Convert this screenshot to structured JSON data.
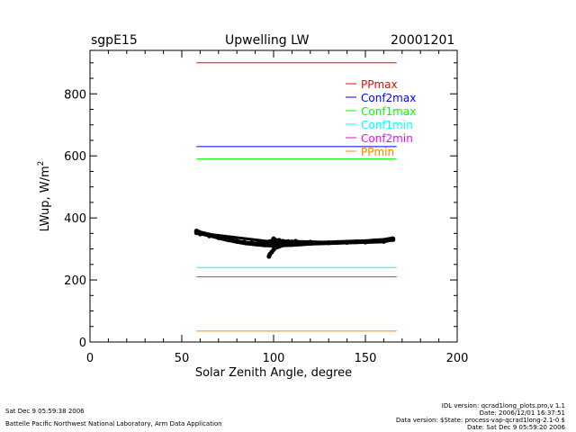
{
  "header": {
    "site": "sgpE15",
    "title": "Upwelling  LW",
    "date": "20001201"
  },
  "footer": {
    "left_line1": "Sat Dec  9 05:59:38 2006",
    "left_line2": "Battelle Pacific Northwest National Laboratory, Arm Data Application",
    "right_line1": "IDL version: qcrad1long_plots.pro,v 1.1",
    "right_line2": "Date: 2006/12/01 16:37:51",
    "right_line3": "Data version: $State: process-vap-qcrad1long-2.1-0 $",
    "right_line4": "Date: Sat Dec  9 05:59:20 2006"
  },
  "chart_data": {
    "type": "line",
    "title": "Upwelling  LW",
    "xlabel": "Solar Zenith Angle, degree",
    "ylabel": "LWup, W/m²",
    "xlim": [
      0,
      200
    ],
    "ylim": [
      0,
      940
    ],
    "x_ticks": [
      0,
      50,
      100,
      150,
      200
    ],
    "x_tick_labels": [
      "0",
      "50",
      "100",
      "150",
      "200"
    ],
    "y_ticks": [
      0,
      200,
      400,
      600,
      800
    ],
    "y_tick_labels": [
      "0",
      "200",
      "400",
      "600",
      "800"
    ],
    "x_minor_step": 10,
    "y_minor_step": 50,
    "grid": false,
    "legend_position": "top-right",
    "series": [
      {
        "name": "PPmax",
        "color": "#ff0000",
        "x": [
          58,
          167
        ],
        "y": [
          900,
          900
        ]
      },
      {
        "name": "Conf2max",
        "color": "#0000ff",
        "x": [
          58,
          167
        ],
        "y": [
          630,
          630
        ]
      },
      {
        "name": "Conf1max",
        "color": "#00ff00",
        "x": [
          58,
          167
        ],
        "y": [
          590,
          590
        ]
      },
      {
        "name": "Conf1min",
        "color": "#00ffff",
        "x": [
          58,
          167
        ],
        "y": [
          240,
          240
        ]
      },
      {
        "name": "Conf2min",
        "color": "#ff00ff",
        "x": [
          58,
          167
        ],
        "y": [
          210,
          210
        ]
      },
      {
        "name": "PPmin",
        "color": "#ff8000",
        "x": [
          58,
          167
        ],
        "y": [
          35,
          35
        ]
      }
    ],
    "measurements": {
      "color": "#000000",
      "points": [
        [
          58,
          358
        ],
        [
          60,
          352
        ],
        [
          65,
          345
        ],
        [
          70,
          337
        ],
        [
          75,
          330
        ],
        [
          80,
          324
        ],
        [
          85,
          319
        ],
        [
          90,
          316
        ],
        [
          95,
          313
        ],
        [
          100,
          312
        ],
        [
          105,
          313
        ],
        [
          110,
          314
        ],
        [
          115,
          316
        ],
        [
          120,
          318
        ],
        [
          125,
          319
        ],
        [
          130,
          320
        ],
        [
          135,
          321
        ],
        [
          140,
          322
        ],
        [
          145,
          323
        ],
        [
          150,
          324
        ],
        [
          155,
          326
        ],
        [
          160,
          328
        ],
        [
          165,
          333
        ],
        [
          165,
          330
        ],
        [
          160,
          324
        ],
        [
          150,
          322
        ],
        [
          140,
          321
        ],
        [
          130,
          320
        ],
        [
          120,
          322
        ],
        [
          110,
          323
        ],
        [
          105,
          325
        ],
        [
          100,
          323
        ],
        [
          97,
          322
        ],
        [
          97,
          322
        ],
        [
          92,
          320
        ],
        [
          88,
          320
        ],
        [
          84,
          322
        ],
        [
          80,
          325
        ],
        [
          75,
          330
        ],
        [
          70,
          336
        ],
        [
          65,
          342
        ],
        [
          60,
          348
        ],
        [
          58,
          352
        ],
        [
          98,
          324
        ],
        [
          100,
          333
        ],
        [
          103,
          328
        ],
        [
          108,
          324
        ],
        [
          112,
          325
        ],
        [
          100,
          298
        ],
        [
          99,
          290
        ],
        [
          98,
          283
        ],
        [
          97.5,
          276
        ]
      ]
    }
  }
}
